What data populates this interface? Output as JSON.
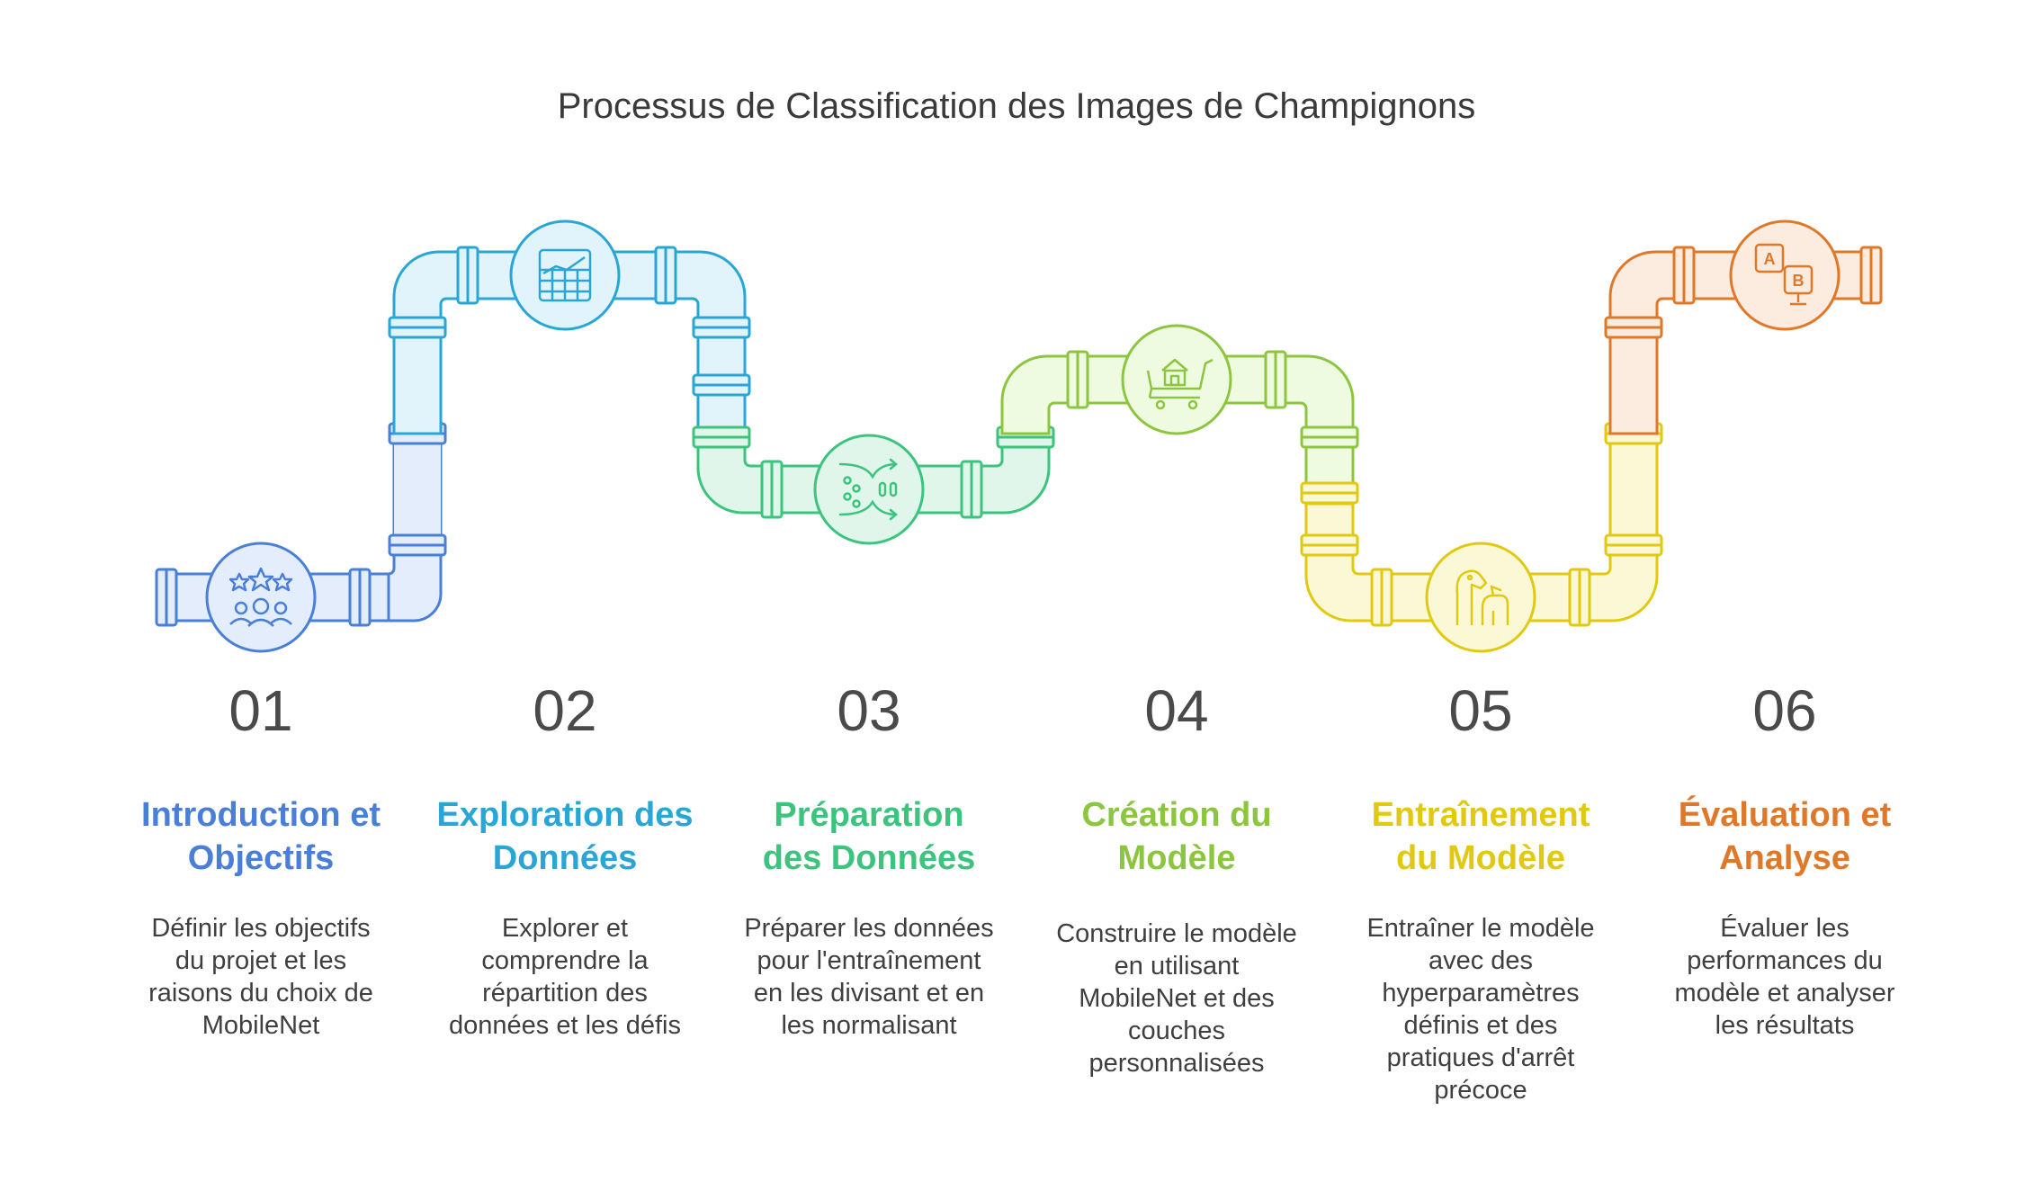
{
  "title": "Processus de Classification des Images de Champignons",
  "colors": {
    "step1": "#4a7fd8",
    "step2": "#2aa6d6",
    "step3": "#3cc47e",
    "step4": "#8cc63f",
    "step5": "#e0c910",
    "step6": "#e0782a"
  },
  "steps": [
    {
      "number": "01",
      "heading": [
        "Introduction et",
        "Objectifs"
      ],
      "description": [
        "Définir les objectifs",
        "du projet et les",
        "raisons du choix de",
        "MobileNet"
      ],
      "icon": "stars-users-icon"
    },
    {
      "number": "02",
      "heading": [
        "Exploration des",
        "Données"
      ],
      "description": [
        "Explorer et",
        "comprendre la",
        "répartition des",
        "données et les défis"
      ],
      "icon": "bar-chart-icon"
    },
    {
      "number": "03",
      "heading": [
        "Préparation",
        "des Données"
      ],
      "description": [
        "Préparer les données",
        "pour l'entraînement",
        "en les divisant et en",
        "les normalisant"
      ],
      "icon": "data-split-icon"
    },
    {
      "number": "04",
      "heading": [
        "Création du",
        "Modèle"
      ],
      "description": [
        "Construire le modèle",
        "en utilisant",
        "MobileNet et des",
        "couches",
        "personnalisées"
      ],
      "icon": "house-cart-icon"
    },
    {
      "number": "05",
      "heading": [
        "Entraînement",
        "du Modèle"
      ],
      "description": [
        "Entraîner le modèle",
        "avec des",
        "hyperparamètres",
        "définis et des",
        "pratiques d'arrêt",
        "précoce"
      ],
      "icon": "dog-training-icon"
    },
    {
      "number": "06",
      "heading": [
        "Évaluation et",
        "Analyse"
      ],
      "description": [
        "Évaluer les",
        "performances du",
        "modèle et analyser",
        "les résultats"
      ],
      "icon": "ab-test-icon"
    }
  ]
}
